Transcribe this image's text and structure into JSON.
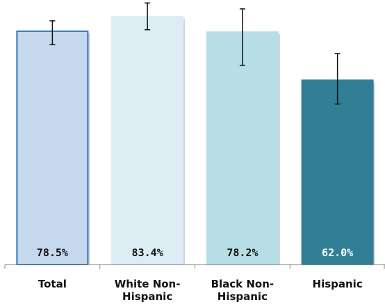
{
  "chart_data": {
    "type": "bar",
    "categories": [
      [
        "Total"
      ],
      [
        "White Non-",
        "Hispanic"
      ],
      [
        "Black Non-",
        "Hispanic"
      ],
      [
        "Hispanic"
      ]
    ],
    "values": [
      78.5,
      83.4,
      78.2,
      62.0
    ],
    "value_labels": [
      "78.5%",
      "83.4%",
      "78.2%",
      "62.0%"
    ],
    "error_bars": [
      {
        "low": 74.0,
        "high": 82.0
      },
      {
        "low": 79.0,
        "high": 88.0
      },
      {
        "low": 67.0,
        "high": 86.0
      },
      {
        "low": 54.0,
        "high": 71.0
      }
    ],
    "ylim": [
      0,
      89
    ],
    "title": "",
    "xlabel": "",
    "ylabel": "",
    "grid": false,
    "legend": "none",
    "colors": {
      "fills": [
        "#c6d8ee",
        "#dceef4",
        "#b7dee7",
        "#307f95"
      ],
      "outlines": [
        "#2f74b8",
        "#dceef4",
        "#b7dee7",
        "#307f95"
      ],
      "value_text": [
        "#111111",
        "#111111",
        "#111111",
        "#ffffff"
      ],
      "axis": "#808080",
      "error_bar": "#111111"
    }
  }
}
